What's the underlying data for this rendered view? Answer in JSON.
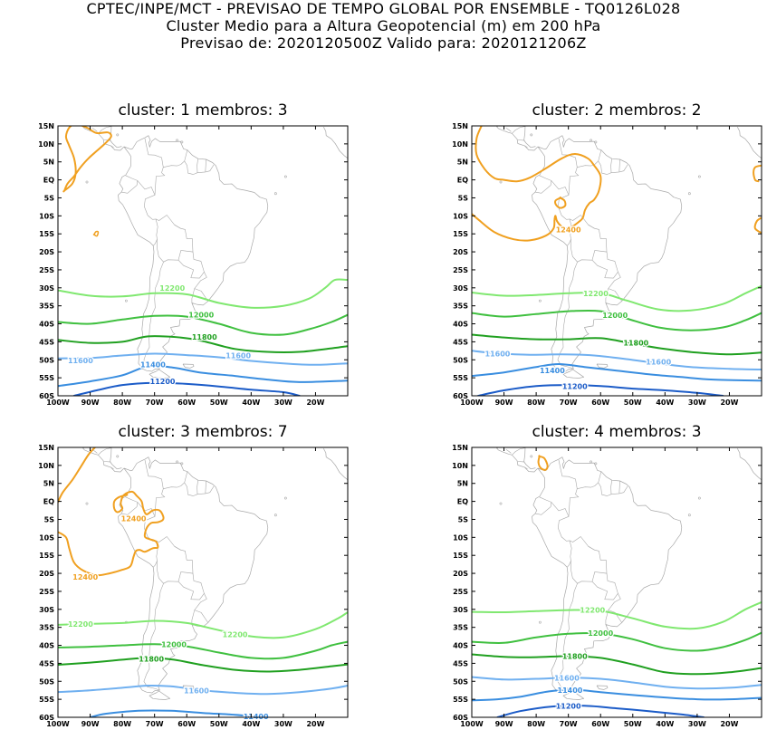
{
  "header": {
    "line1": "CPTEC/INPE/MCT - PREVISAO DE TEMPO GLOBAL POR ENSEMBLE - TQ0126L028",
    "line2": "Cluster Medio para a Altura Geopotencial (m) em 200 hPa",
    "line3": "Previsao de: 2020120500Z   Valido para: 2020121206Z"
  },
  "y_ticks": [
    "15N",
    "10N",
    "5N",
    "EQ",
    "5S",
    "10S",
    "15S",
    "20S",
    "25S",
    "30S",
    "35S",
    "40S",
    "45S",
    "50S",
    "55S",
    "60S"
  ],
  "x_ticks": [
    "100W",
    "90W",
    "80W",
    "70W",
    "60W",
    "50W",
    "40W",
    "30W",
    "20W"
  ],
  "panels": [
    {
      "title": "cluster: 1   membros: 3",
      "labels": [
        "12200",
        "12000",
        "11800",
        "11600",
        "11600",
        "11400",
        "11200"
      ]
    },
    {
      "title": "cluster: 2   membros: 2",
      "labels": [
        "12400",
        "12200",
        "12000",
        "11800",
        "11600",
        "11600",
        "11400",
        "11200"
      ]
    },
    {
      "title": "cluster: 3   membros: 7",
      "labels": [
        "12400",
        "12400",
        "12200",
        "12200",
        "12000",
        "11800",
        "11600",
        "11400"
      ]
    },
    {
      "title": "cluster: 4   membros: 3",
      "labels": [
        "12200",
        "12000",
        "11800",
        "11600",
        "11400",
        "11200"
      ]
    }
  ],
  "colors": {
    "c12400": "#f0a020",
    "c12200": "#80e870",
    "c12000": "#40c040",
    "c11800": "#20a020",
    "c11600": "#70b0f0",
    "c11400": "#3a8ee0",
    "c11200": "#1c5cc8",
    "coast": "#a8a8a8"
  }
}
